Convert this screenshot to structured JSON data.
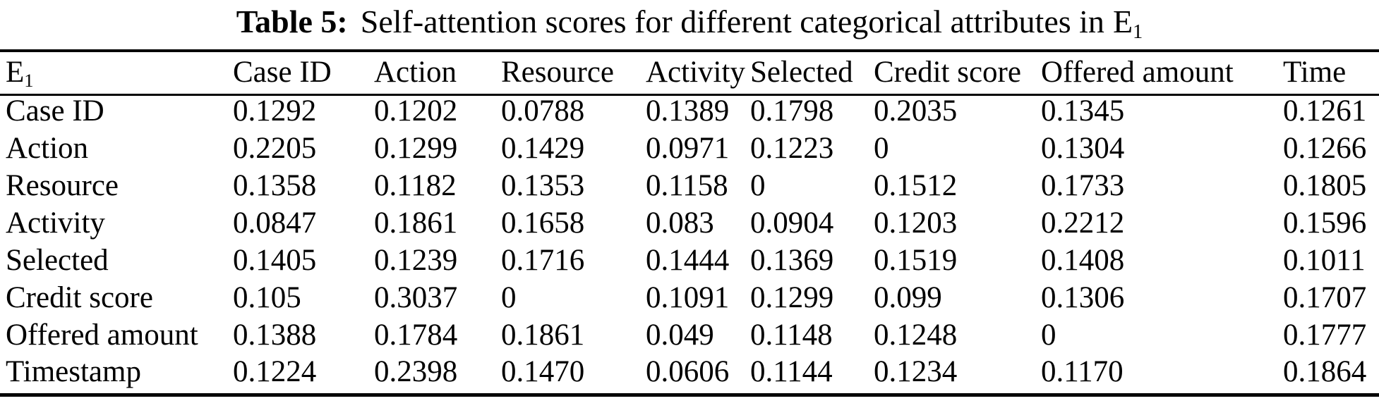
{
  "page": {
    "background_color": "#ffffff",
    "text_color": "#000000"
  },
  "caption": {
    "label": "Table 5:",
    "text": "Self-attention scores for different categorical attributes in",
    "subject_base": "E",
    "subject_subscript": "1"
  },
  "table": {
    "corner_header": {
      "base": "E",
      "subscript": "1"
    },
    "column_headers": [
      "Case ID",
      "Action",
      "Resource",
      "Activity",
      "Selected",
      "Credit score",
      "Offered amount",
      "Time"
    ],
    "rows": [
      {
        "label": "Case ID",
        "values": [
          "0.1292",
          "0.1202",
          "0.0788",
          "0.1389",
          "0.1798",
          "0.2035",
          "0.1345",
          "0.1261"
        ]
      },
      {
        "label": "Action",
        "values": [
          "0.2205",
          "0.1299",
          "0.1429",
          "0.0971",
          "0.1223",
          "0",
          "0.1304",
          "0.1266"
        ]
      },
      {
        "label": "Resource",
        "values": [
          "0.1358",
          "0.1182",
          "0.1353",
          "0.1158",
          "0",
          "0.1512",
          "0.1733",
          "0.1805"
        ]
      },
      {
        "label": "Activity",
        "values": [
          "0.0847",
          "0.1861",
          "0.1658",
          "0.083",
          "0.0904",
          "0.1203",
          "0.2212",
          "0.1596"
        ]
      },
      {
        "label": "Selected",
        "values": [
          "0.1405",
          "0.1239",
          "0.1716",
          "0.1444",
          "0.1369",
          "0.1519",
          "0.1408",
          "0.1011"
        ]
      },
      {
        "label": "Credit score",
        "values": [
          "0.105",
          "0.3037",
          "0",
          "0.1091",
          "0.1299",
          "0.099",
          "0.1306",
          "0.1707"
        ]
      },
      {
        "label": "Offered amount",
        "values": [
          "0.1388",
          "0.1784",
          "0.1861",
          "0.049",
          "0.1148",
          "0.1248",
          "0",
          "0.1777"
        ]
      },
      {
        "label": "Timestamp",
        "values": [
          "0.1224",
          "0.2398",
          "0.1470",
          "0.0606",
          "0.1144",
          "0.1234",
          "0.1170",
          "0.1864"
        ]
      }
    ]
  }
}
